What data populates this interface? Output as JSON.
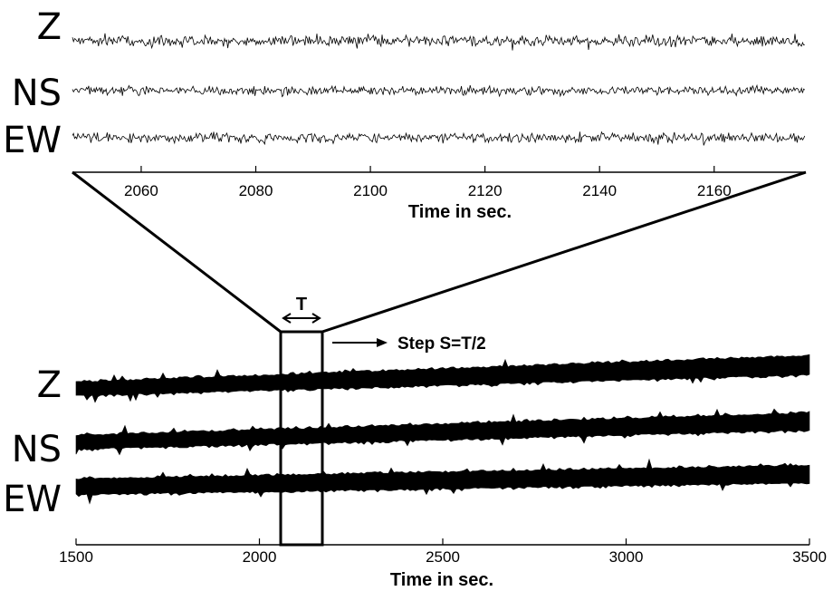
{
  "top_panel": {
    "components": [
      "Z",
      "NS",
      "EW"
    ],
    "xlabel": "Time in sec.",
    "xlim": [
      2048,
      2176
    ],
    "ticks": [
      "2060",
      "2080",
      "2100",
      "2120",
      "2140",
      "2160"
    ]
  },
  "bottom_panel": {
    "components": [
      "Z",
      "NS",
      "EW"
    ],
    "xlabel": "Time in sec.",
    "xlim": [
      1500,
      3500
    ],
    "ticks": [
      "1500",
      "2000",
      "2500",
      "3000",
      "3500"
    ]
  },
  "window": {
    "start": 2048,
    "end": 2164,
    "width_label": "T",
    "step_label": "Step S=T/2"
  }
}
